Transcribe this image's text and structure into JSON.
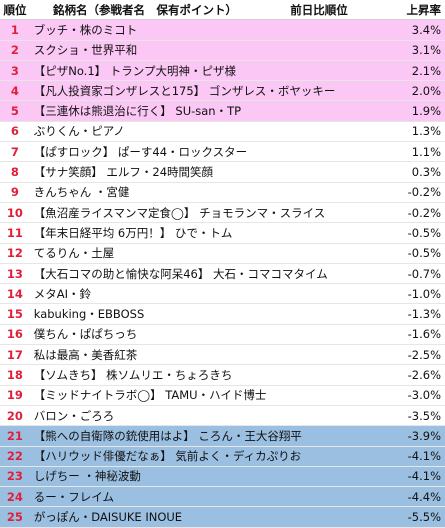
{
  "header": {
    "rank": "順位",
    "name": "銘柄名（参戦者名　保有ポイント）",
    "prev_rank": "前日比順位",
    "rate": "上昇率"
  },
  "colors": {
    "top_band": "#fbc7f5",
    "bottom_band": "#9bbfe0",
    "rank_red": "#e0203a"
  },
  "rows": [
    {
      "rank": "1",
      "name": "ブッチ・株のミコト",
      "rate": "3.4%",
      "band": "top"
    },
    {
      "rank": "2",
      "name": "スクショ・世界平和",
      "rate": "3.1%",
      "band": "top"
    },
    {
      "rank": "3",
      "name": "【ピザNo.1】 トランプ大明神・ピザ様",
      "rate": "2.1%",
      "band": "top"
    },
    {
      "rank": "4",
      "name": "【凡人投資家ゴンザレスと175】 ゴンザレス・ボヤッキー",
      "rate": "2.0%",
      "band": "top"
    },
    {
      "rank": "5",
      "name": "【三連休は熊退治に行く】 SU-san・TP",
      "rate": "1.9%",
      "band": "top"
    },
    {
      "rank": "6",
      "name": "ぶりくん・ピアノ",
      "rate": "1.3%",
      "band": "none"
    },
    {
      "rank": "7",
      "name": "【ぱすロック】 ぱーす44・ロックスター",
      "rate": "1.1%",
      "band": "none"
    },
    {
      "rank": "8",
      "name": "【サナ笑顔】 エルフ・24時間笑顔",
      "rate": "0.3%",
      "band": "none"
    },
    {
      "rank": "9",
      "name": "きんちゃん ・宮健",
      "rate": "-0.2%",
      "band": "none"
    },
    {
      "rank": "10",
      "name": "【魚沼産ライスマンマ定食◯】 チョモランマ・スライス",
      "rate": "-0.2%",
      "band": "none"
    },
    {
      "rank": "11",
      "name": "【年末日経平均 6万円！】 ひで・トム",
      "rate": "-0.5%",
      "band": "none"
    },
    {
      "rank": "12",
      "name": "てるりん・土屋",
      "rate": "-0.5%",
      "band": "none"
    },
    {
      "rank": "13",
      "name": "【大石コマの助と愉快な阿呆46】 大石・コマコマタイム",
      "rate": "-0.7%",
      "band": "none"
    },
    {
      "rank": "14",
      "name": "メタAI・鈴",
      "rate": "-1.0%",
      "band": "none"
    },
    {
      "rank": "15",
      "name": "kabuking・EBBOSS",
      "rate": "-1.3%",
      "band": "none"
    },
    {
      "rank": "16",
      "name": "僕ちん・ぱぱちっち",
      "rate": "-1.6%",
      "band": "none"
    },
    {
      "rank": "17",
      "name": "私は最高・美香紅茶",
      "rate": "-2.5%",
      "band": "none"
    },
    {
      "rank": "18",
      "name": "【ソムきち】 株ソムリエ・ちょろきち",
      "rate": "-2.6%",
      "band": "none"
    },
    {
      "rank": "19",
      "name": "【ミッドナイトラボ◯】 TAMU・ハイド博士",
      "rate": "-3.0%",
      "band": "none"
    },
    {
      "rank": "20",
      "name": "バロン・ごろろ",
      "rate": "-3.5%",
      "band": "none"
    },
    {
      "rank": "21",
      "name": "【熊への自衛隊の銃使用はよ】 ころん・王大谷翔平",
      "rate": "-3.9%",
      "band": "bottom"
    },
    {
      "rank": "22",
      "name": "【ハリウッド俳優だなぁ】 気前よく・ディカぷりお",
      "rate": "-4.1%",
      "band": "bottom"
    },
    {
      "rank": "23",
      "name": "しげちー ・神秘波動",
      "rate": "-4.1%",
      "band": "bottom"
    },
    {
      "rank": "24",
      "name": "るー・フレイム",
      "rate": "-4.4%",
      "band": "bottom"
    },
    {
      "rank": "25",
      "name": "がっぽん・DAISUKE INOUE",
      "rate": "-5.5%",
      "band": "bottom"
    }
  ]
}
